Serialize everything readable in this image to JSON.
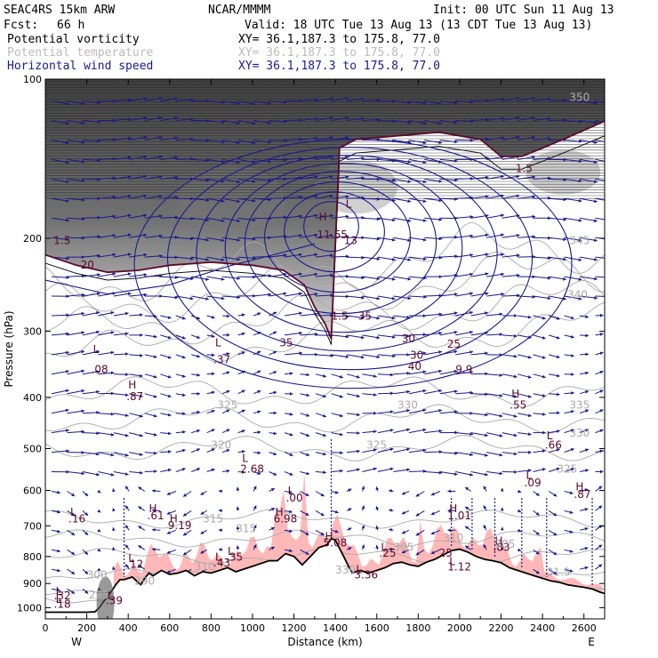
{
  "header": {
    "model": "SEAC4RS 15km ARW",
    "center": "NCAR/MMMM",
    "init": "Init: 00 UTC Sun 11 Aug 13",
    "fcst_label": "Fcst:",
    "fcst_value": "66 h",
    "valid": "Valid: 18 UTC Tue 13 Aug 13 (13 CDT Tue 13 Aug 13)",
    "fields": [
      {
        "name": "Potential vorticity",
        "xy": "XY=  36.1,187.3 to 175.8, 77.0"
      },
      {
        "name": "Potential temperature",
        "xy": "XY=  36.1,187.3 to 175.8, 77.0"
      },
      {
        "name": "Horizontal wind speed",
        "xy": "XY=  36.1,187.3 to 175.8, 77.0"
      }
    ]
  },
  "colors": {
    "pv": "#000000",
    "theta": "#aaaaaa",
    "wind": "#1a1a8c",
    "pv_label": "#5a0a2a",
    "moist_fill": "#ffb8b8",
    "terrain": "#000000",
    "trop": "#5a0a2a"
  },
  "chart_data": {
    "type": "cross-section",
    "xlabel": "Distance (km)",
    "ylabel": "Pressure (hPa)",
    "xlim": [
      0,
      2700
    ],
    "ylim": [
      1050,
      100
    ],
    "y_scale": "log",
    "x_ticks": [
      0,
      200,
      400,
      600,
      800,
      1000,
      1200,
      1400,
      1600,
      1800,
      2000,
      2200,
      2400,
      2600
    ],
    "y_ticks": [
      100,
      200,
      300,
      400,
      500,
      600,
      700,
      800,
      900,
      1000
    ],
    "x_end_labels": [
      "W",
      "E"
    ],
    "terrain": {
      "x": [
        0,
        100,
        200,
        240,
        260,
        280,
        300,
        320,
        340,
        360,
        380,
        400,
        420,
        440,
        460,
        480,
        500,
        520,
        560,
        600,
        640,
        680,
        720,
        760,
        800,
        840,
        880,
        920,
        960,
        1000,
        1040,
        1080,
        1120,
        1160,
        1200,
        1240,
        1280,
        1320,
        1360,
        1380,
        1400,
        1440,
        1480,
        1520,
        1560,
        1600,
        1640,
        1680,
        1720,
        1760,
        1800,
        1840,
        1880,
        1920,
        1960,
        2000,
        2040,
        2080,
        2120,
        2160,
        2200,
        2240,
        2280,
        2320,
        2360,
        2400,
        2440,
        2480,
        2520,
        2560,
        2600,
        2640,
        2680,
        2700
      ],
      "p": [
        1020,
        1020,
        1020,
        1018,
        1000,
        975,
        955,
        930,
        905,
        885,
        885,
        880,
        875,
        890,
        905,
        880,
        860,
        870,
        850,
        865,
        860,
        850,
        870,
        855,
        860,
        850,
        840,
        855,
        845,
        835,
        825,
        815,
        815,
        790,
        800,
        830,
        800,
        770,
        760,
        740,
        745,
        800,
        860,
        850,
        860,
        850,
        840,
        825,
        820,
        830,
        835,
        820,
        810,
        795,
        780,
        775,
        785,
        800,
        810,
        815,
        822,
        840,
        850,
        860,
        870,
        880,
        890,
        895,
        905,
        910,
        915,
        922,
        935,
        940
      ]
    },
    "pv_labels": [
      "1.5",
      "20",
      "1.5",
      "35",
      "35",
      "30",
      "30",
      "25",
      "40",
      "9.9",
      "25",
      "1.5"
    ],
    "theta_labels": [
      "350",
      "345",
      "340",
      "335",
      "330",
      "330",
      "325",
      "325",
      "325",
      "320",
      "315",
      "315",
      "310",
      "310",
      "305",
      "305",
      "300",
      "295",
      "290",
      "330",
      "31.5"
    ],
    "highs_lows": [
      {
        "type": "L",
        "value": ".08"
      },
      {
        "type": "L",
        "value": ".37"
      },
      {
        "type": "H",
        "value": ".87"
      },
      {
        "type": "H",
        "value": "11.55"
      },
      {
        "type": "L",
        "value": "13"
      },
      {
        "type": "H",
        "value": ".55"
      },
      {
        "type": "L",
        "value": ".66"
      },
      {
        "type": "L",
        "value": "2.68"
      },
      {
        "type": "L",
        "value": ".09"
      },
      {
        "type": "H",
        "value": ".87"
      },
      {
        "type": "L",
        "value": ".00"
      },
      {
        "type": "H",
        "value": ".61"
      },
      {
        "type": "H",
        "value": "6.98"
      },
      {
        "type": "H",
        "value": "1.01"
      },
      {
        "type": "L",
        "value": ".16"
      },
      {
        "type": "H",
        "value": "9.19"
      },
      {
        "type": "H",
        "value": "5.08"
      },
      {
        "type": "H",
        "value": ".83"
      },
      {
        "type": "L",
        "value": ".35"
      },
      {
        "type": "L",
        "value": ".43"
      },
      {
        "type": "L",
        "value": ".25"
      },
      {
        "type": "L",
        "value": "1.12"
      },
      {
        "type": "L",
        "value": ".12"
      },
      {
        "type": "L",
        "value": "3.36"
      },
      {
        "type": "L",
        "value": ".32"
      },
      {
        "type": "L",
        "value": ".18"
      },
      {
        "type": "L",
        "value": ".39"
      }
    ]
  }
}
